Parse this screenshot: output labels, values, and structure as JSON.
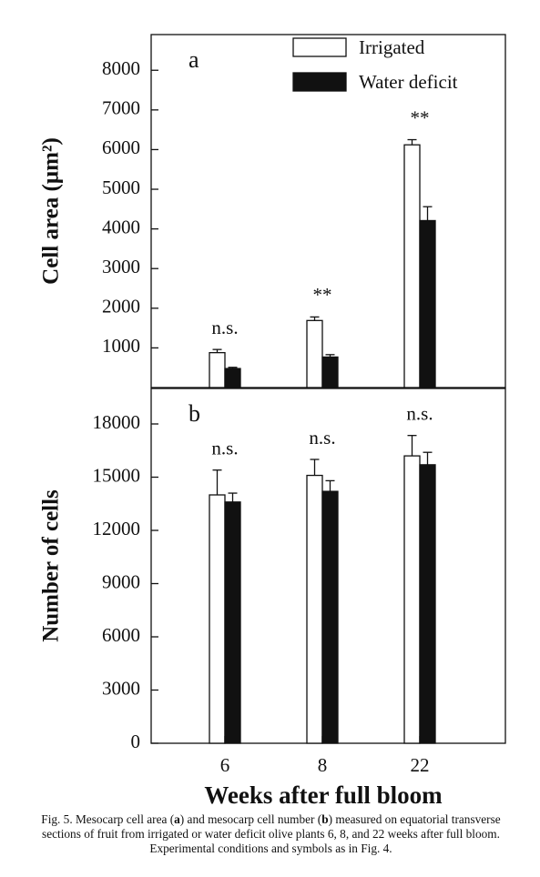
{
  "chart_data": [
    {
      "type": "bar",
      "panel_label": "a",
      "y_label": "Cell area (µm²)",
      "categories": [
        null,
        null,
        null
      ],
      "series": [
        {
          "name": "Irrigated",
          "color": "#ffffff",
          "values": [
            880,
            1690,
            6120
          ],
          "errors": [
            80,
            90,
            130
          ]
        },
        {
          "name": "Water deficit",
          "color": "#111111",
          "values": [
            480,
            770,
            4210
          ],
          "errors": [
            30,
            60,
            350
          ]
        }
      ],
      "annotations": [
        "n.s.",
        "**",
        "**"
      ],
      "ylim": [
        0,
        8900
      ],
      "yticks": [
        1000,
        2000,
        3000,
        4000,
        5000,
        6000,
        7000,
        8000
      ],
      "legend": "upper right"
    },
    {
      "type": "bar",
      "panel_label": "b",
      "y_label": "Number of cells",
      "x_label": "Weeks after full bloom",
      "categories": [
        "6",
        "8",
        "22"
      ],
      "series": [
        {
          "color": "#ffffff",
          "values": [
            14000,
            15100,
            16200
          ],
          "errors": [
            1400,
            900,
            1150
          ]
        },
        {
          "color": "#111111",
          "values": [
            13600,
            14200,
            15700
          ],
          "errors": [
            500,
            600,
            700
          ]
        }
      ],
      "annotations": [
        "n.s.",
        "n.s.",
        "n.s."
      ],
      "ylim": [
        0,
        20000
      ],
      "yticks": [
        0,
        3000,
        6000,
        9000,
        12000,
        15000,
        18000
      ]
    }
  ],
  "caption": [
    "Fig. 5. Mesocarp cell area (",
    "a",
    ") and mesocarp cell number (",
    "b",
    ") measured on equatorial transverse sections of fruit from irrigated or water deficit olive plants 6, 8, and 22 weeks after full bloom. Experimental conditions and symbols as in Fig. 4."
  ]
}
